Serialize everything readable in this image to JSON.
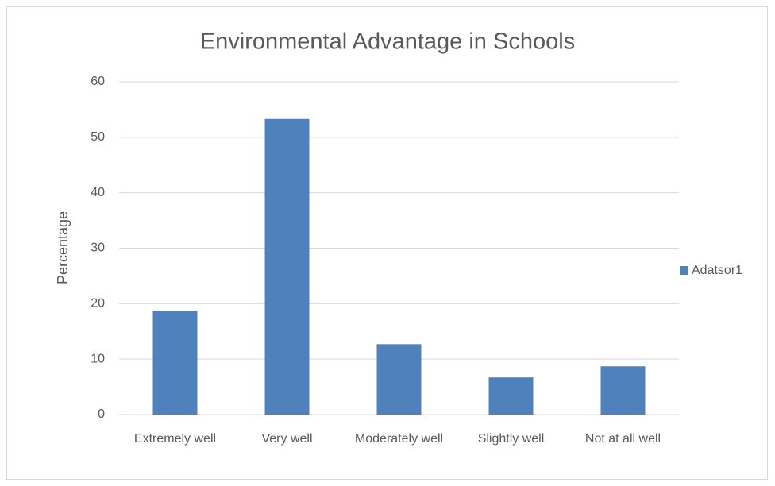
{
  "chart_data": {
    "type": "bar",
    "title": "Environmental Advantage in Schools",
    "y_label": "Percentage",
    "categories": [
      "Extremely well",
      "Very well",
      "Moderately well",
      "Slightly well",
      "Not at all well"
    ],
    "series": [
      {
        "name": "Adatsor1",
        "color": "#4f81bd",
        "values": [
          18.7,
          53.3,
          12.7,
          6.7,
          8.7
        ]
      }
    ],
    "ylim": [
      0,
      60
    ],
    "yticks": [
      0,
      10,
      20,
      30,
      40,
      50,
      60
    ],
    "grid": true,
    "legend": "right"
  }
}
